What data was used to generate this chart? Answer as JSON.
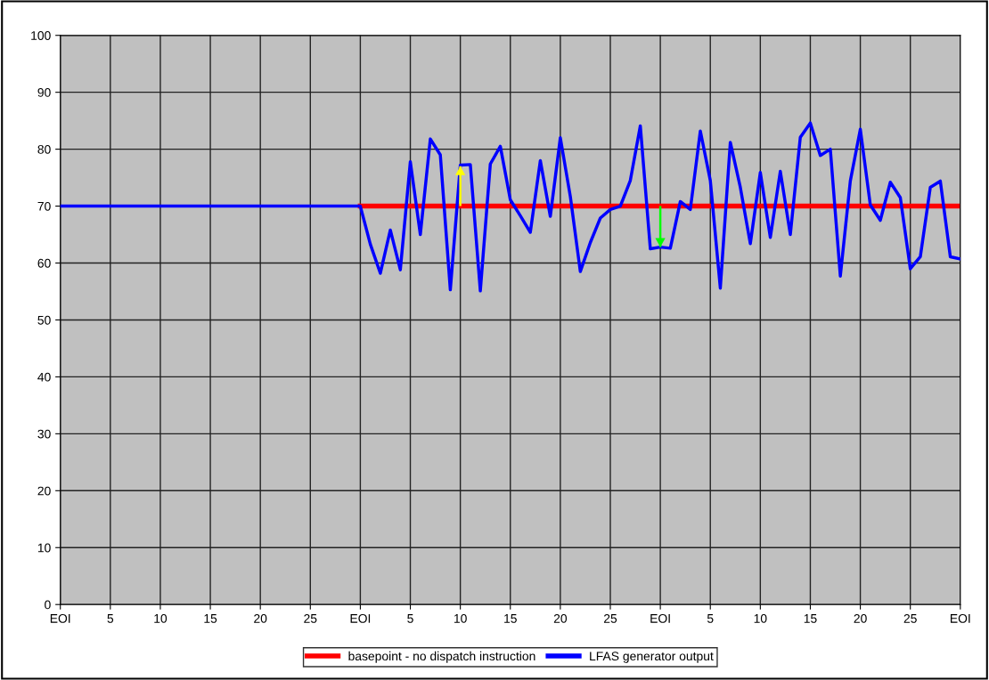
{
  "chart_data": {
    "type": "line",
    "categories": [
      "EOI",
      null,
      null,
      null,
      null,
      "5",
      null,
      null,
      null,
      null,
      "10",
      null,
      null,
      null,
      null,
      "15",
      null,
      null,
      null,
      null,
      "20",
      null,
      null,
      null,
      null,
      "25",
      null,
      null,
      null,
      null,
      "EOI",
      null,
      null,
      null,
      null,
      "5",
      null,
      null,
      null,
      null,
      "10",
      null,
      null,
      null,
      null,
      "15",
      null,
      null,
      null,
      null,
      "20",
      null,
      null,
      null,
      null,
      "25",
      null,
      null,
      null,
      null,
      "EOI",
      null,
      null,
      null,
      null,
      "5",
      null,
      null,
      null,
      null,
      "10",
      null,
      null,
      null,
      null,
      "15",
      null,
      null,
      null,
      null,
      "20",
      null,
      null,
      null,
      null,
      "25",
      null,
      null,
      null,
      null,
      "EOI"
    ],
    "ylim": [
      0,
      100
    ],
    "yticks": [
      0,
      10,
      20,
      30,
      40,
      50,
      60,
      70,
      80,
      90,
      100
    ],
    "grid": true,
    "legend": "bottom",
    "series": [
      {
        "name": "basepoint - no dispatch instruction",
        "color": "#ff0000",
        "values": [
          null,
          null,
          null,
          null,
          null,
          null,
          null,
          null,
          null,
          null,
          null,
          null,
          null,
          null,
          null,
          null,
          null,
          null,
          null,
          null,
          null,
          null,
          null,
          null,
          null,
          null,
          null,
          null,
          null,
          null,
          70,
          70,
          70,
          70,
          70,
          70,
          70,
          70,
          70,
          70,
          70,
          70,
          70,
          70,
          70,
          70,
          70,
          70,
          70,
          70,
          70,
          70,
          70,
          70,
          70,
          70,
          70,
          70,
          70,
          70,
          70,
          70,
          70,
          70,
          70,
          70,
          70,
          70,
          70,
          70,
          70,
          70,
          70,
          70,
          70,
          70,
          70,
          70,
          70,
          70,
          70,
          70,
          70,
          70,
          70,
          70,
          70,
          70,
          70,
          70,
          70
        ]
      },
      {
        "name": "LFAS generator output",
        "color": "#0000ff",
        "values": [
          70,
          70,
          70,
          70,
          70,
          70,
          70,
          70,
          70,
          70,
          70,
          70,
          70,
          70,
          70,
          70,
          70,
          70,
          70,
          70,
          70,
          70,
          70,
          70,
          70,
          70,
          70,
          70,
          70,
          70,
          70,
          63.3,
          58.2,
          65.8,
          58.8,
          77.8,
          65.0,
          81.8,
          79.0,
          55.3,
          77.2,
          77.3,
          55.1,
          77.4,
          80.5,
          71.1,
          68.3,
          65.4,
          78.0,
          68.2,
          82.0,
          71.7,
          58.5,
          63.6,
          67.9,
          69.4,
          70.0,
          74.5,
          84.1,
          62.5,
          62.8,
          62.6,
          70.8,
          69.4,
          83.2,
          74.5,
          55.6,
          81.2,
          73.3,
          63.4,
          75.9,
          64.5,
          76.1,
          65.0,
          82.1,
          84.6,
          78.9,
          80.0,
          57.7,
          74.4,
          83.5,
          70.2,
          67.5,
          74.2,
          71.5,
          59.0,
          61.1,
          73.3,
          74.4,
          61.1,
          60.7
        ]
      },
      {
        "type": "bar",
        "color": "#ffff00",
        "base": [
          null,
          null,
          null,
          null,
          null,
          null,
          null,
          null,
          null,
          null,
          null,
          null,
          null,
          null,
          null,
          null,
          null,
          null,
          null,
          null,
          null,
          null,
          null,
          null,
          null,
          null,
          null,
          null,
          null,
          null,
          null,
          null,
          null,
          null,
          null,
          null,
          null,
          null,
          null,
          null,
          70,
          null,
          null,
          null,
          null,
          null,
          null,
          null,
          null,
          null,
          null,
          null,
          null,
          null,
          null,
          null,
          null,
          null,
          null,
          null,
          null,
          null,
          null,
          null,
          null,
          null,
          null,
          null,
          null,
          null,
          null,
          null,
          null,
          null,
          null,
          null,
          null,
          null,
          null,
          null,
          null,
          null,
          null,
          null,
          null,
          null,
          null,
          null,
          null,
          null,
          null
        ],
        "values": [
          null,
          null,
          null,
          null,
          null,
          null,
          null,
          null,
          null,
          null,
          null,
          null,
          null,
          null,
          null,
          null,
          null,
          null,
          null,
          null,
          null,
          null,
          null,
          null,
          null,
          null,
          null,
          null,
          null,
          null,
          null,
          null,
          null,
          null,
          null,
          null,
          null,
          null,
          null,
          null,
          7,
          null,
          null,
          null,
          null,
          null,
          null,
          null,
          null,
          null,
          null,
          null,
          null,
          null,
          null,
          null,
          null,
          null,
          null,
          null,
          null,
          null,
          null,
          null,
          null,
          null,
          null,
          null,
          null,
          null,
          null,
          null,
          null,
          null,
          null,
          null,
          null,
          null,
          null,
          null,
          null,
          null,
          null,
          null,
          null,
          null,
          null,
          null,
          null,
          null,
          null
        ]
      },
      {
        "type": "bar",
        "color": "#00ff00",
        "base": [
          null,
          null,
          null,
          null,
          null,
          null,
          null,
          null,
          null,
          null,
          null,
          null,
          null,
          null,
          null,
          null,
          null,
          null,
          null,
          null,
          null,
          null,
          null,
          null,
          null,
          null,
          null,
          null,
          null,
          null,
          null,
          null,
          null,
          null,
          null,
          null,
          null,
          null,
          null,
          null,
          null,
          null,
          null,
          null,
          null,
          null,
          null,
          null,
          null,
          null,
          null,
          null,
          null,
          null,
          null,
          null,
          null,
          null,
          null,
          null,
          70,
          null,
          null,
          null,
          null,
          null,
          null,
          null,
          null,
          null,
          null,
          null,
          null,
          null,
          null,
          null,
          null,
          null,
          null,
          null,
          null,
          null,
          null,
          null,
          null,
          null,
          null,
          null,
          null,
          null,
          null
        ],
        "values": [
          null,
          null,
          null,
          null,
          null,
          null,
          null,
          null,
          null,
          null,
          null,
          null,
          null,
          null,
          null,
          null,
          null,
          null,
          null,
          null,
          null,
          null,
          null,
          null,
          null,
          null,
          null,
          null,
          null,
          null,
          null,
          null,
          null,
          null,
          null,
          null,
          null,
          null,
          null,
          null,
          null,
          null,
          null,
          null,
          null,
          null,
          null,
          null,
          null,
          null,
          null,
          null,
          null,
          null,
          null,
          null,
          null,
          null,
          null,
          null,
          -7.2,
          null,
          null,
          null,
          null,
          null,
          null,
          null,
          null,
          null,
          null,
          null,
          null,
          null,
          null,
          null,
          null,
          null,
          null,
          null,
          null,
          null,
          null,
          null,
          null,
          null,
          null,
          null,
          null,
          null,
          null
        ]
      }
    ]
  }
}
